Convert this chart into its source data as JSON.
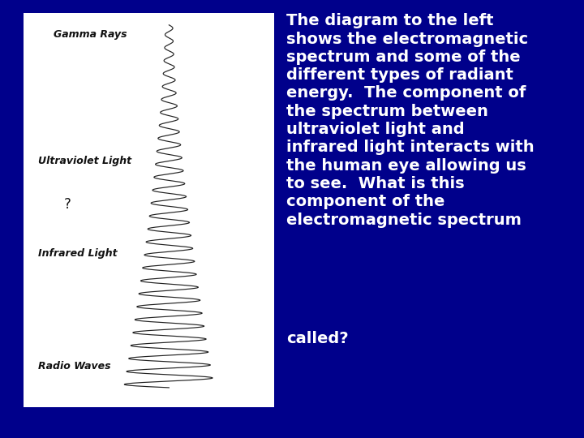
{
  "bg_color": "#00008B",
  "panel_bg": "#FFFFFF",
  "text_color": "#FFFFFF",
  "label_gamma": "Gamma Rays",
  "label_uv": "Ultraviolet Light",
  "label_question": "?",
  "label_ir": "Infrared Light",
  "label_radio": "Radio Waves",
  "num_cycles": 28,
  "label_fontsize": 9,
  "body_fontsize": 14,
  "label_color": "#111111",
  "main_text": "The diagram to the left\nshows the electromagnetic\nspectrum and some of the\ndifferent types of radiant\nenergy.  The component of\nthe spectrum between\nultraviolet light and\ninfrared light interacts with\nthe human eye allowing us\nto see.  What is this\ncomponent of the\nelectromagnetic spectrum",
  "called_text": "called?"
}
